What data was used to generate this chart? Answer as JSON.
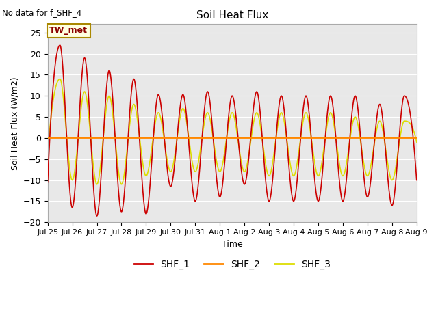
{
  "title": "Soil Heat Flux",
  "no_data_text": "No data for f_SHF_4",
  "ylabel": "Soil Heat Flux (W/m2)",
  "xlabel": "Time",
  "annotation_text": "TW_met",
  "ylim": [
    -20,
    27
  ],
  "yticks": [
    -20,
    -15,
    -10,
    -5,
    0,
    5,
    10,
    15,
    20,
    25
  ],
  "xtick_labels": [
    "Jul 25",
    "Jul 26",
    "Jul 27",
    "Jul 28",
    "Jul 29",
    "Jul 30",
    "Jul 31",
    "Aug 1",
    "Aug 2",
    "Aug 3",
    "Aug 4",
    "Aug 5",
    "Aug 6",
    "Aug 7",
    "Aug 8",
    "Aug 9"
  ],
  "color_shf1": "#CC0000",
  "color_shf2": "#FF8800",
  "color_shf3": "#DDDD00",
  "legend_labels": [
    "SHF_1",
    "SHF_2",
    "SHF_3"
  ],
  "background_color": "#E8E8E8",
  "n_days": 15,
  "shf1_pos_peaks": [
    -10.5,
    22,
    -16.5,
    19,
    -18.5,
    16,
    -17.5,
    14,
    -18,
    10.3,
    -11.5,
    10.3,
    -15,
    11,
    -14,
    10,
    -11,
    11,
    -15,
    10,
    -15,
    10,
    -15,
    10,
    -15,
    10,
    -14,
    8,
    -16,
    10,
    -10
  ],
  "shf3_pos_peaks": [
    -4,
    14,
    -10,
    11,
    -11,
    10,
    -11,
    8,
    -9,
    6,
    -8,
    7,
    -8,
    6,
    -8,
    6,
    -8,
    6,
    -9,
    6,
    -9,
    6,
    -9,
    6,
    -9,
    5,
    -9,
    4,
    -10,
    4,
    -1
  ],
  "grid_color": "#FFFFFF",
  "spine_color": "#AAAAAA",
  "annotation_facecolor": "lightyellow",
  "annotation_edgecolor": "#AA8800"
}
